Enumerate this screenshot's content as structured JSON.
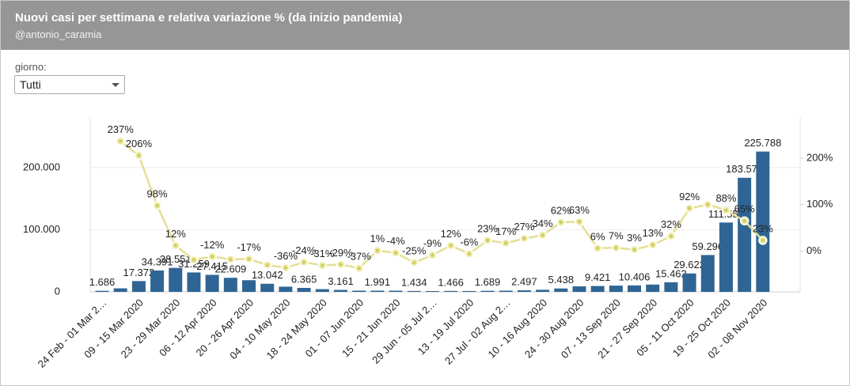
{
  "header": {
    "title": "Nuovi casi per settimana e relativa variazione % (da inizio pandemia)",
    "subtitle": "@antonio_caramia"
  },
  "filter": {
    "label": "giorno:",
    "selected": "Tutti"
  },
  "chart_data": {
    "type": "bar-line",
    "categories": [
      "24 Feb - 01 Mar 2…",
      null,
      "09 - 15 Mar 2020",
      null,
      "23 - 29 Mar 2020",
      null,
      "06 - 12 Apr 2020",
      null,
      "20 - 26 Apr 2020",
      null,
      "04 - 10 May 2020",
      null,
      "18 - 24 May 2020",
      null,
      "01 - 07 Jun 2020",
      null,
      "15 - 21 Jun 2020",
      null,
      "29 Jun - 05 Jul 2…",
      null,
      "13 - 19 Jul 2020",
      null,
      "27 Jul - 02 Aug 2…",
      null,
      "10 - 16 Aug 2020",
      null,
      "24 - 30 Aug 2020",
      null,
      "07 - 13 Sep 2020",
      null,
      "21 - 27 Sep 2020",
      null,
      "05 - 11 Oct 2020",
      null,
      "19 - 25 Oct 2020",
      null,
      "02 - 08 Nov 2020"
    ],
    "series": [
      {
        "type": "bar",
        "color": "#2f6594",
        "values": [
          1686,
          5681,
          17372,
          34391,
          38551,
          31259,
          27415,
          22609,
          18765,
          13042,
          8353,
          6365,
          4423,
          3161,
          1975,
          1991,
          1911,
          1434,
          1305,
          1466,
          1378,
          1689,
          1976,
          2497,
          3346,
          5438,
          8870,
          9421,
          10080,
          10406,
          11759,
          15462,
          29622,
          59296,
          111550,
          183577,
          225788
        ],
        "value_labels": [
          "1.686",
          null,
          "17.372",
          "34.391",
          "38.551",
          "31.259",
          "27.415",
          "22.609",
          null,
          "13.042",
          null,
          "6.365",
          null,
          "3.161",
          null,
          "1.991",
          null,
          "1.434",
          null,
          "1.466",
          null,
          "1.689",
          null,
          "2.497",
          null,
          "5.438",
          null,
          "9.421",
          null,
          "10.406",
          null,
          "15.462",
          "29.622",
          "59.296",
          "111.550",
          "183.577",
          "225.788"
        ]
      },
      {
        "type": "line",
        "axis": "y2",
        "color": "#e4df94",
        "values": [
          null,
          237,
          206,
          98,
          12,
          -19,
          -12,
          -18,
          -17,
          -30,
          -36,
          -24,
          -31,
          -29,
          -37,
          1,
          -4,
          -25,
          -9,
          12,
          -6,
          23,
          17,
          27,
          34,
          62,
          63,
          6,
          7,
          3,
          13,
          32,
          92,
          100,
          88,
          65,
          23
        ],
        "value_labels": [
          null,
          "237%",
          "206%",
          "98%",
          "12%",
          null,
          "-12%",
          null,
          "-17%",
          null,
          "-36%",
          "-24%",
          "-31%",
          "-29%",
          "-37%",
          "1%",
          "-4%",
          "-25%",
          "-9%",
          "12%",
          "-6%",
          "23%",
          "17%",
          "27%",
          "34%",
          "62%",
          "63%",
          "6%",
          "7%",
          "3%",
          "13%",
          "32%",
          "92%",
          null,
          "88%",
          "65%",
          "23%"
        ]
      }
    ],
    "ylim": [
      0,
      280000
    ],
    "yticks": [
      0,
      {
        "value": 100000,
        "label": "100.000"
      },
      {
        "value": 200000,
        "label": "200.000"
      }
    ],
    "y2lim": [
      -88,
      287
    ],
    "y2ticks": [
      {
        "value": 0,
        "label": "0%"
      },
      {
        "value": 100,
        "label": "100%"
      },
      {
        "value": 200,
        "label": "200%"
      }
    ],
    "grid": true
  }
}
